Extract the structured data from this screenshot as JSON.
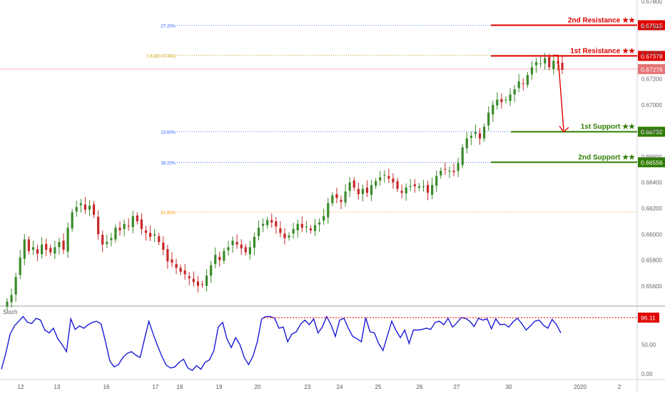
{
  "chart_data": [
    {
      "type": "candlestick",
      "ylim": [
        0.6545,
        0.6781
      ],
      "y_ticks": [
        "0.67800",
        "0.67600",
        "0.67400",
        "0.67200",
        "0.67000",
        "0.66800",
        "0.66600",
        "0.66400",
        "0.66200",
        "0.66000",
        "0.65800",
        "0.65600"
      ],
      "y_tick_values": [
        0.678,
        0.676,
        0.674,
        0.672,
        0.67,
        0.668,
        0.666,
        0.664,
        0.662,
        0.66,
        0.658,
        0.656
      ],
      "x_ticks": [
        "12",
        "13",
        "16",
        "17",
        "18",
        "19",
        "20",
        "23",
        "24",
        "25",
        "26",
        "27",
        "30",
        "2020",
        "2"
      ],
      "current_price": "0.67276",
      "fib_levels": [
        {
          "label": "-27.20%",
          "value": 0.67615,
          "color": "#2962ff"
        },
        {
          "label": "1.618(0.67383)",
          "value": 0.67383,
          "color": "#c8a000"
        },
        {
          "label": "23.60%",
          "value": 0.66792,
          "color": "#2962ff"
        },
        {
          "label": "38.20%",
          "value": 0.66556,
          "color": "#2962ff"
        },
        {
          "label": "61.80%",
          "value": 0.66172,
          "color": "#ff9800"
        }
      ],
      "levels": [
        {
          "name": "2nd Resistance ★★",
          "value": 0.67615,
          "price_label": "0.67615",
          "color": "#e00000"
        },
        {
          "name": "1st Resistance ★★",
          "value": 0.67378,
          "price_label": "0.67378",
          "color": "#e00000"
        },
        {
          "name": "1st Support ★★",
          "value": 0.66792,
          "price_label": "0.66792",
          "color": "#2e7d00"
        },
        {
          "name": "2nd Support ★★",
          "value": 0.66556,
          "price_label": "0.66556",
          "color": "#2e7d00"
        }
      ],
      "arrow": {
        "from": 0.67383,
        "to": 0.66792,
        "color": "#e00000"
      },
      "candle_colors": {
        "up": "#3a8a2a",
        "down": "#c62828"
      },
      "close_series": [
        0.6548,
        0.6553,
        0.6567,
        0.6582,
        0.6596,
        0.6587,
        0.659,
        0.6585,
        0.6592,
        0.6588,
        0.6586,
        0.659,
        0.6594,
        0.6588,
        0.6605,
        0.6617,
        0.6621,
        0.6624,
        0.6619,
        0.6622,
        0.6615,
        0.66,
        0.6592,
        0.6594,
        0.6597,
        0.6605,
        0.6603,
        0.6608,
        0.6606,
        0.6614,
        0.661,
        0.6604,
        0.6601,
        0.6598,
        0.66,
        0.6594,
        0.6588,
        0.6579,
        0.6578,
        0.6574,
        0.6571,
        0.6569,
        0.6566,
        0.6563,
        0.656,
        0.6561,
        0.6568,
        0.6576,
        0.6584,
        0.658,
        0.6587,
        0.659,
        0.6595,
        0.6592,
        0.6589,
        0.6586,
        0.659,
        0.6598,
        0.6605,
        0.6608,
        0.6611,
        0.6609,
        0.6606,
        0.6601,
        0.6597,
        0.6599,
        0.6604,
        0.6608,
        0.6605,
        0.6606,
        0.6603,
        0.6607,
        0.6609,
        0.6614,
        0.6624,
        0.663,
        0.6628,
        0.6625,
        0.6633,
        0.664,
        0.6636,
        0.6631,
        0.6635,
        0.6632,
        0.6638,
        0.6641,
        0.6644,
        0.6646,
        0.6643,
        0.664,
        0.6635,
        0.6632,
        0.6636,
        0.6637,
        0.6637,
        0.6637,
        0.6637,
        0.6632,
        0.6638,
        0.6645,
        0.6649,
        0.665,
        0.6649,
        0.6648,
        0.6655,
        0.6667,
        0.6674,
        0.6676,
        0.6679,
        0.6674,
        0.6683,
        0.6694,
        0.67,
        0.6704,
        0.6702,
        0.6704,
        0.6708,
        0.6712,
        0.6718,
        0.6716,
        0.6723,
        0.6729,
        0.6733,
        0.6732,
        0.6736,
        0.6729,
        0.6734,
        0.6732,
        0.6727
      ]
    },
    {
      "type": "line",
      "title": "Stoch",
      "ylim": [
        0,
        100
      ],
      "y_ticks": [
        "50.00",
        "0.00"
      ],
      "y_tick_values": [
        50,
        0
      ],
      "threshold": {
        "value": 96.11,
        "label": "96.11",
        "color": "#e00000"
      },
      "series": [
        {
          "color": "#1a1ad8",
          "values": [
            8,
            35,
            68,
            82,
            90,
            98,
            88,
            86,
            95,
            92,
            75,
            70,
            78,
            60,
            50,
            38,
            94,
            76,
            82,
            78,
            84,
            88,
            90,
            85,
            55,
            22,
            12,
            16,
            28,
            35,
            38,
            32,
            28,
            60,
            90,
            68,
            48,
            30,
            15,
            10,
            12,
            20,
            25,
            10,
            6,
            14,
            8,
            20,
            24,
            40,
            80,
            88,
            60,
            45,
            62,
            50,
            28,
            16,
            30,
            55,
            94,
            98,
            98,
            95,
            78,
            80,
            55,
            68,
            72,
            85,
            92,
            84,
            94,
            70,
            80,
            98,
            84,
            64,
            92,
            95,
            78,
            64,
            60,
            55,
            96,
            72,
            70,
            52,
            40,
            65,
            90,
            74,
            62,
            75,
            52,
            75,
            75,
            76,
            78,
            76,
            88,
            90,
            84,
            95,
            80,
            87,
            96,
            95,
            90,
            81,
            95,
            92,
            94,
            77,
            94,
            84,
            85,
            80,
            89,
            95,
            86,
            75,
            82,
            90,
            92,
            83,
            78,
            93,
            84,
            70
          ]
        }
      ]
    }
  ],
  "ui": {
    "indicator_name": "Stoch"
  }
}
